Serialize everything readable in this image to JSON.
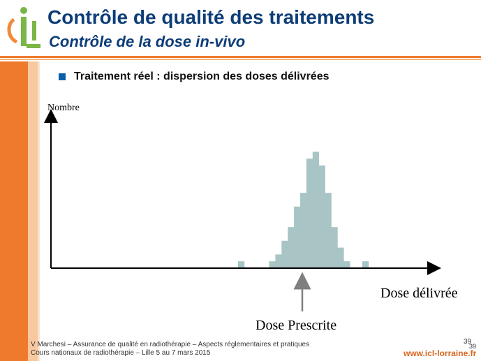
{
  "slide": {
    "title": "Contrôle de qualité des traitements",
    "subtitle": "Contrôle de la dose in-vivo",
    "bullet": "Traitement réel : dispersion des doses délivrées",
    "footer_line1": "V Marchesi – Assurance de qualité en radiothérapie – Aspects réglementaires et pratiques",
    "footer_line2": "Cours nationaux de radiothérapie – Lille 5 au 7 mars 2015",
    "page_number": "39",
    "page_number_small": "39",
    "website": "www.icl-lorraine.fr",
    "colors": {
      "brand_orange": "#ef7a2e",
      "title_blue": "#0d3d78",
      "bar_color": "#a9c4c4",
      "logo_green": "#7ab648"
    }
  },
  "chart_data": {
    "type": "bar",
    "xlabel": "Dose délivrée",
    "ylabel": "Nombre",
    "marker_label": "Dose Prescrite",
    "marker_bin": 16,
    "bins": 29,
    "values": [
      1,
      0,
      0,
      0,
      0,
      1,
      2,
      4,
      6,
      9,
      11,
      16,
      17,
      15,
      11,
      6,
      3,
      1,
      0,
      0,
      1
    ],
    "first_bin": 0,
    "grid": false,
    "legend": "none"
  }
}
